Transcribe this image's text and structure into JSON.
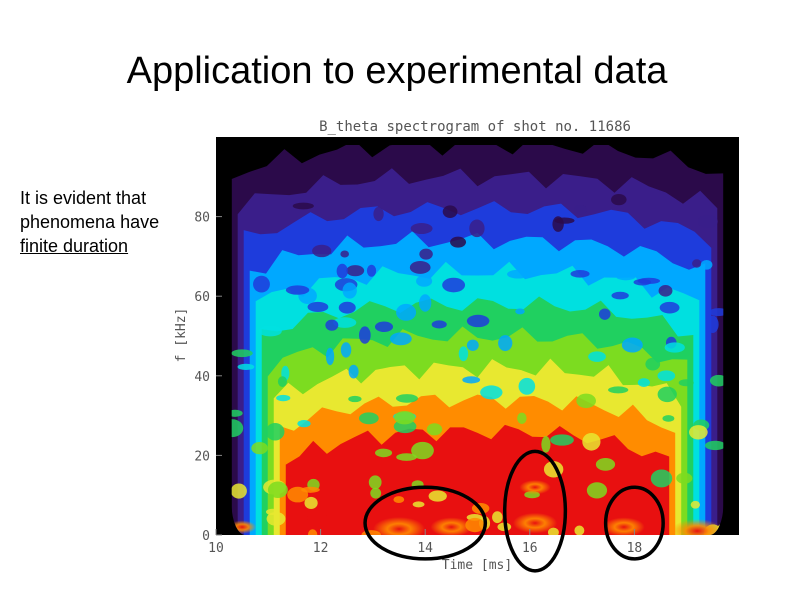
{
  "slide": {
    "title": "Application to experimental data",
    "note_lines": [
      "It is evident that",
      "phenomena have",
      "finite duration"
    ]
  },
  "chart_data": {
    "type": "heatmap",
    "title": "B_theta spectrogram of shot no. 11686",
    "xlabel": "Time [ms]",
    "ylabel": "f [kHz]",
    "x_ticks": [
      {
        "value": 10,
        "label": "10"
      },
      {
        "value": 12,
        "label": "12"
      },
      {
        "value": 14,
        "label": "14"
      },
      {
        "value": 16,
        "label": "16"
      },
      {
        "value": 18,
        "label": "18"
      }
    ],
    "y_ticks": [
      {
        "value": 0,
        "label": "0"
      },
      {
        "value": 20,
        "label": "20"
      },
      {
        "value": 40,
        "label": "40"
      },
      {
        "value": 60,
        "label": "60"
      },
      {
        "value": 80,
        "label": "80"
      }
    ],
    "xlim": [
      10,
      20
    ],
    "ylim": [
      0,
      100
    ],
    "colormap": [
      "#000000",
      "#2b0a4a",
      "#3a1e8a",
      "#1e3cdc",
      "#00a8ff",
      "#00e0e0",
      "#20d060",
      "#7cdc20",
      "#e8e830",
      "#ff8c00",
      "#e81010"
    ],
    "background_color": "#000000",
    "signal_region": {
      "t_start": 10.3,
      "t_end": 19.7
    },
    "highlights": [
      {
        "name": "",
        "t_center": 14.0,
        "f_center": 3,
        "t_halfwidth": 1.15,
        "f_halfwidth": 9
      },
      {
        "name": "",
        "t_center": 16.1,
        "f_center": 6,
        "t_halfwidth": 0.58,
        "f_halfwidth": 15
      },
      {
        "name": "",
        "t_center": 18.0,
        "f_center": 3,
        "t_halfwidth": 0.55,
        "f_halfwidth": 9
      }
    ],
    "hot_spots": [
      {
        "t": 13.5,
        "f": 1.5,
        "intensity": 1.0
      },
      {
        "t": 14.5,
        "f": 2,
        "intensity": 0.8
      },
      {
        "t": 16.1,
        "f": 3,
        "intensity": 0.85
      },
      {
        "t": 16.1,
        "f": 12,
        "intensity": 0.6
      },
      {
        "t": 17.8,
        "f": 2,
        "intensity": 0.8
      },
      {
        "t": 19.2,
        "f": 1,
        "intensity": 1.0
      },
      {
        "t": 10.5,
        "f": 2,
        "intensity": 0.55
      }
    ]
  }
}
